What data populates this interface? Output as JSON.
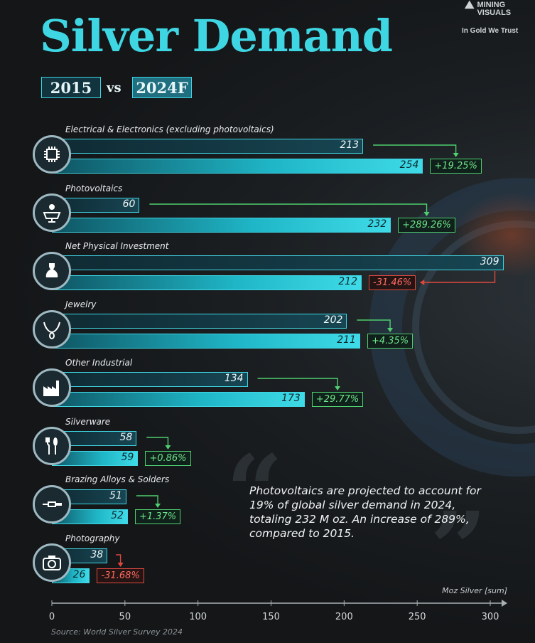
{
  "title": "Silver Demand",
  "logo": {
    "line1": "MINING",
    "line2": "VISUALS",
    "tagline": "In Gold We Trust"
  },
  "years": {
    "a": "2015",
    "vs": "vs",
    "b": "2024F"
  },
  "chart_data": {
    "type": "bar",
    "categories": [
      "Electrical & Electronics (excluding photovoltaics)",
      "Photovoltaics",
      "Net Physical Investment",
      "Jewelry",
      "Other Industrial",
      "Silverware",
      "Brazing Alloys & Solders",
      "Photography"
    ],
    "icons": [
      "chip-icon",
      "solar-panel-icon",
      "money-bag-icon",
      "necklace-icon",
      "factory-icon",
      "cutlery-icon",
      "soldering-iron-icon",
      "camera-icon"
    ],
    "series": [
      {
        "name": "2015",
        "values": [
          213,
          60,
          309,
          202,
          134,
          58,
          51,
          38
        ]
      },
      {
        "name": "2024F",
        "values": [
          254,
          232,
          212,
          211,
          173,
          59,
          52,
          26
        ]
      }
    ],
    "changes": [
      "+19.25%",
      "+289.26%",
      "-31.46%",
      "+4.35%",
      "+29.77%",
      "+0.86%",
      "+1.37%",
      "-31.68%"
    ],
    "xlim": [
      0,
      300
    ],
    "xticks": [
      "0",
      "50",
      "100",
      "150",
      "200",
      "250",
      "300"
    ],
    "xlabel": "Moz Silver [sum]",
    "colors": {
      "accent": "#3fd6e4",
      "increase": "#4fcf6f",
      "decrease": "#e0483e"
    }
  },
  "quote": "Photovoltaics are projected to account for 19% of global silver demand in 2024, totaling 232 M oz. An increase of 289%, compared to 2015.",
  "source": "Source: World Silver Survey 2024"
}
